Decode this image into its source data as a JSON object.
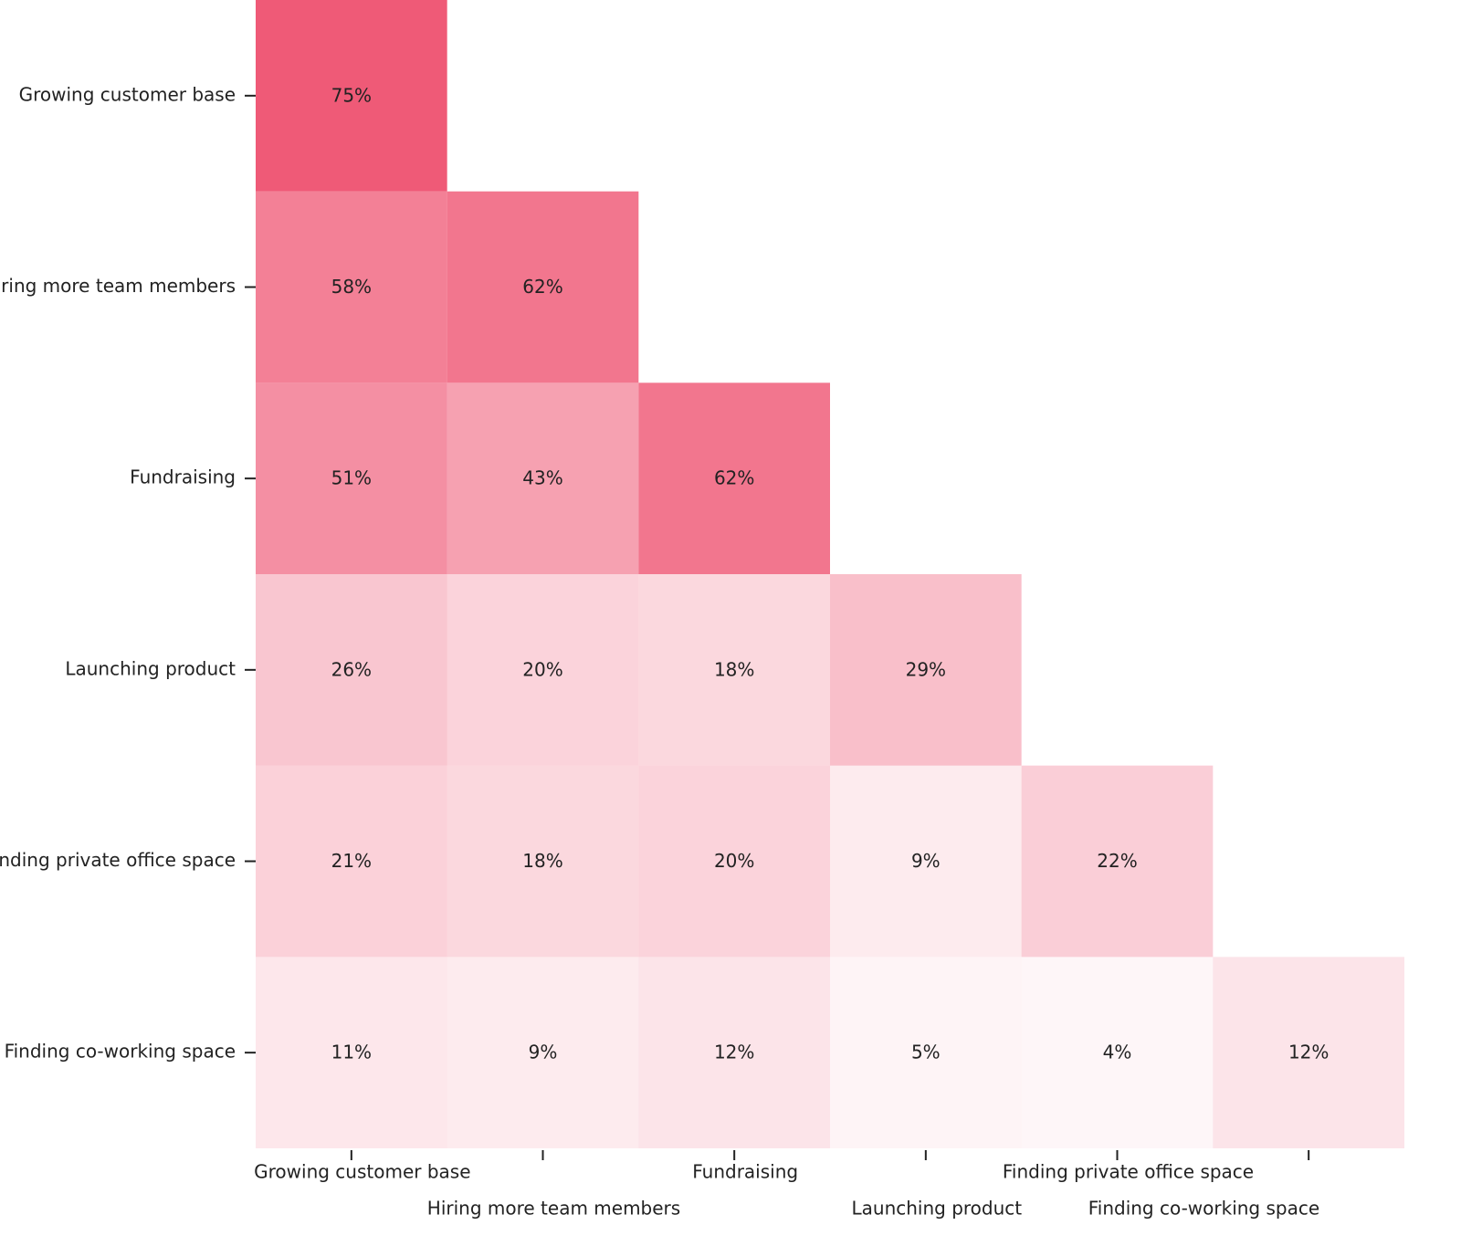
{
  "chart_data": {
    "type": "heatmap",
    "color": "#ef5a77",
    "x_categories": [
      "Growing customer base",
      "Hiring more team members",
      "Fundraising",
      "Launching product",
      "Finding private office space",
      "Finding co-working space"
    ],
    "y_categories": [
      "Growing customer base",
      "Hiring more team members",
      "Fundraising",
      "Launching product",
      "Finding private office space",
      "Finding co-working space"
    ],
    "values": [
      [
        75,
        null,
        null,
        null,
        null,
        null
      ],
      [
        58,
        62,
        null,
        null,
        null,
        null
      ],
      [
        51,
        43,
        62,
        null,
        null,
        null
      ],
      [
        26,
        20,
        18,
        29,
        null,
        null
      ],
      [
        21,
        18,
        20,
        9,
        22,
        null
      ],
      [
        11,
        9,
        12,
        5,
        4,
        12
      ]
    ],
    "value_labels": [
      [
        "75%",
        null,
        null,
        null,
        null,
        null
      ],
      [
        "58%",
        "62%",
        null,
        null,
        null,
        null
      ],
      [
        "51%",
        "43%",
        "62%",
        null,
        null,
        null
      ],
      [
        "26%",
        "20%",
        "18%",
        "29%",
        null,
        null
      ],
      [
        "21%",
        "18%",
        "20%",
        "9%",
        "22%",
        null
      ],
      [
        "11%",
        "9%",
        "12%",
        "5%",
        "4%",
        "12%"
      ]
    ]
  }
}
